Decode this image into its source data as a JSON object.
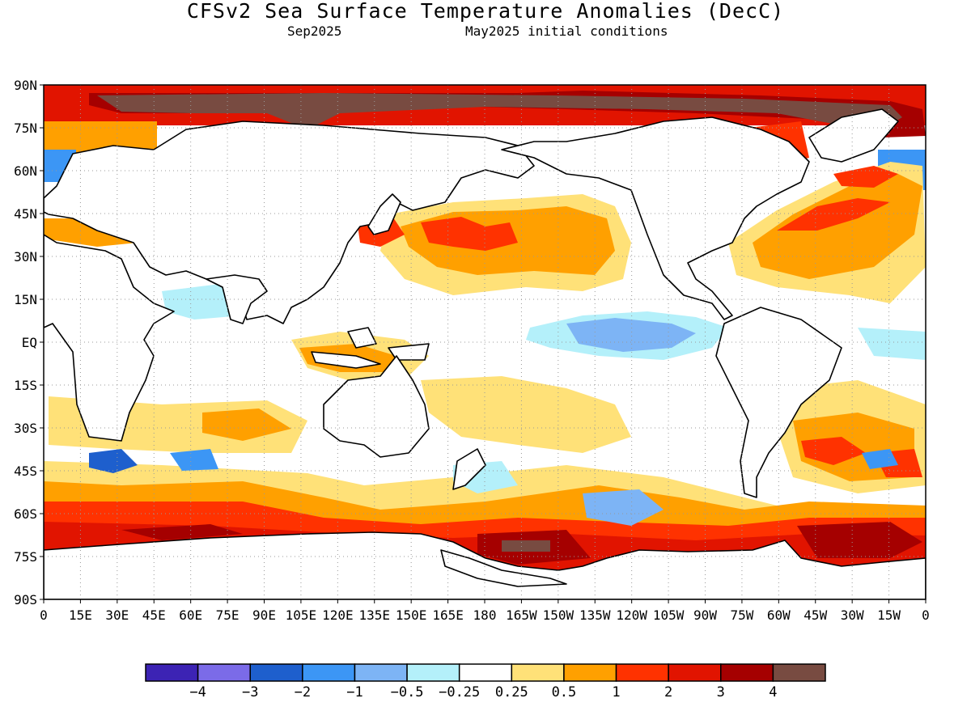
{
  "title": "CFSv2 Sea Surface Temperature Anomalies (DecC)",
  "subtitle_left": "Sep2025",
  "subtitle_right": "May2025 initial conditions",
  "lat_labels": [
    "90N",
    "75N",
    "60N",
    "45N",
    "30N",
    "15N",
    "EQ",
    "15S",
    "30S",
    "45S",
    "60S",
    "75S",
    "90S"
  ],
  "lon_labels": [
    "0",
    "15E",
    "30E",
    "45E",
    "60E",
    "75E",
    "90E",
    "105E",
    "120E",
    "135E",
    "150E",
    "165E",
    "180",
    "165W",
    "150W",
    "135W",
    "120W",
    "105W",
    "90W",
    "75W",
    "60W",
    "45W",
    "30W",
    "15W",
    "0"
  ],
  "colorbar": {
    "colors": [
      "#3c23b4",
      "#7b6be8",
      "#1e5fcd",
      "#3c96f5",
      "#7db4f5",
      "#b4f0fa",
      "#ffffff",
      "#ffe178",
      "#ffa000",
      "#ff3200",
      "#e11400",
      "#a50000",
      "#784b41"
    ],
    "labels": [
      "-4",
      "-3",
      "-2",
      "-1",
      "-0.5",
      "-0.25",
      "0.25",
      "0.5",
      "1",
      "2",
      "3",
      "4"
    ]
  },
  "colors": {
    "land": "#ffffff",
    "coast": "#000000",
    "grid": "#999999"
  }
}
